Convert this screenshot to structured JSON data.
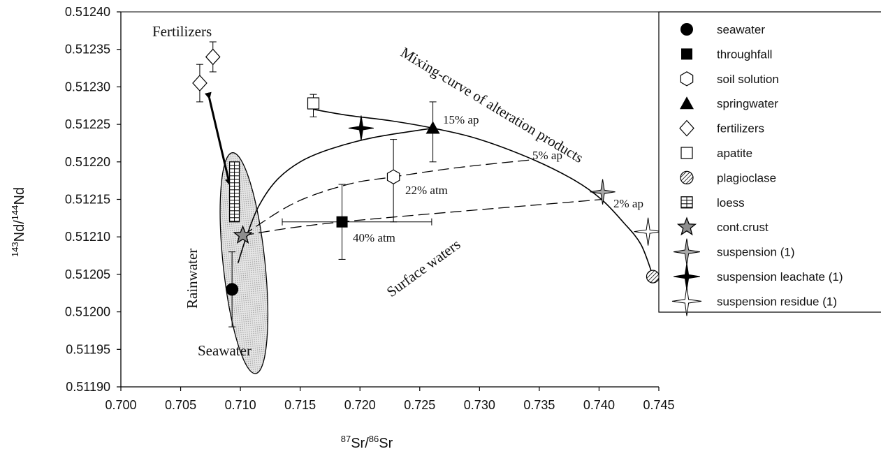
{
  "chart_data": {
    "type": "scatter",
    "xlabel": {
      "sup1": "87",
      "base1": "Sr/",
      "sup2": "86",
      "base2": "Sr"
    },
    "ylabel": {
      "sup1": "143",
      "base1": "Nd/",
      "sup2": "144",
      "base2": "Nd"
    },
    "xlim": [
      0.7,
      0.745
    ],
    "ylim": [
      0.5119,
      0.5124
    ],
    "xticks": [
      "0.700",
      "0.705",
      "0.710",
      "0.715",
      "0.720",
      "0.725",
      "0.730",
      "0.735",
      "0.740",
      "0.745"
    ],
    "yticks": [
      "0.51190",
      "0.51195",
      "0.51200",
      "0.51205",
      "0.51210",
      "0.51215",
      "0.51220",
      "0.51225",
      "0.51230",
      "0.51235",
      "0.51240"
    ],
    "grid": false,
    "legend_position": "right",
    "series": [
      {
        "name": "seawater",
        "marker": "circle",
        "points": [
          {
            "x": 0.7093,
            "y": 0.51203,
            "yerr": [
              0.51198,
              0.51208
            ]
          }
        ]
      },
      {
        "name": "throughfall",
        "marker": "square",
        "points": [
          {
            "x": 0.7185,
            "y": 0.51212,
            "xerr": [
              0.7135,
              0.726
            ],
            "yerr": [
              0.51207,
              0.51217
            ]
          }
        ]
      },
      {
        "name": "soil solution",
        "marker": "hexagon",
        "points": [
          {
            "x": 0.7228,
            "y": 0.51218,
            "yerr": [
              0.51212,
              0.51223
            ]
          }
        ]
      },
      {
        "name": "springwater",
        "marker": "triangle",
        "points": [
          {
            "x": 0.7261,
            "y": 0.512245,
            "yerr": [
              0.5122,
              0.51228
            ]
          }
        ]
      },
      {
        "name": "fertilizers",
        "marker": "diamond",
        "points": [
          {
            "x": 0.7066,
            "y": 0.512305,
            "yerr": [
              0.51228,
              0.51233
            ]
          },
          {
            "x": 0.7077,
            "y": 0.51234,
            "yerr": [
              0.51232,
              0.51236
            ]
          }
        ]
      },
      {
        "name": "apatite",
        "marker": "open-square",
        "points": [
          {
            "x": 0.7161,
            "y": 0.512278,
            "yerr": [
              0.51226,
              0.51229
            ]
          }
        ]
      },
      {
        "name": "plagioclase",
        "marker": "hatched-circle",
        "points": [
          {
            "x": 0.7445,
            "y": 0.512047
          }
        ]
      },
      {
        "name": "loess",
        "marker": "grid-rect",
        "points": [
          {
            "x": 0.7095,
            "y": 0.512125,
            "yerr": [
              0.51212,
              0.5122
            ]
          }
        ]
      },
      {
        "name": "cont.crust",
        "marker": "star",
        "points": [
          {
            "x": 0.7102,
            "y": 0.512102
          }
        ]
      },
      {
        "name": "suspension (1)",
        "marker": "gray-4star",
        "points": [
          {
            "x": 0.7403,
            "y": 0.51216
          }
        ]
      },
      {
        "name": "suspension leachate (1)",
        "marker": "black-4star",
        "points": [
          {
            "x": 0.7201,
            "y": 0.512245
          }
        ]
      },
      {
        "name": "suspension residue (1)",
        "marker": "open-4star",
        "points": [
          {
            "x": 0.7441,
            "y": 0.512107
          }
        ]
      }
    ],
    "curves": [
      {
        "name": "mixing-curve-alteration",
        "style": "solid",
        "points": [
          [
            0.7161,
            0.51227
          ],
          [
            0.719,
            0.512262
          ],
          [
            0.7225,
            0.512255
          ],
          [
            0.7261,
            0.512245
          ],
          [
            0.73,
            0.51223
          ],
          [
            0.7345,
            0.512203
          ],
          [
            0.738,
            0.512175
          ],
          [
            0.7402,
            0.51215
          ],
          [
            0.742,
            0.51212
          ],
          [
            0.7435,
            0.51209
          ],
          [
            0.7445,
            0.512048
          ]
        ]
      },
      {
        "name": "curve-to-springwater",
        "style": "solid",
        "points": [
          [
            0.7098,
            0.512065
          ],
          [
            0.7105,
            0.5121
          ],
          [
            0.7115,
            0.51214
          ],
          [
            0.713,
            0.512175
          ],
          [
            0.715,
            0.5122
          ],
          [
            0.7175,
            0.512217
          ],
          [
            0.721,
            0.512232
          ],
          [
            0.7261,
            0.512245
          ]
        ]
      },
      {
        "name": "dashed-5pct",
        "style": "dashed",
        "points": [
          [
            0.7102,
            0.512102
          ],
          [
            0.7145,
            0.512145
          ],
          [
            0.719,
            0.51217
          ],
          [
            0.7228,
            0.51218
          ],
          [
            0.728,
            0.512192
          ],
          [
            0.7345,
            0.512203
          ]
        ]
      },
      {
        "name": "dashed-2pct",
        "style": "dashed",
        "points": [
          [
            0.7102,
            0.512102
          ],
          [
            0.7185,
            0.51212
          ],
          [
            0.7403,
            0.51215
          ]
        ]
      }
    ],
    "arrow": {
      "from": [
        0.7074,
        0.512285
      ],
      "to": [
        0.7091,
        0.51217
      ]
    },
    "ellipse": {
      "cx": 0.7103,
      "cy": 0.512065,
      "rx": 0.00175,
      "ry": 0.000148
    },
    "annotations": {
      "fertilizers": "Fertilizers",
      "mixing": "Mixing-curve of alteration products",
      "p15": "15% ap",
      "p5": "5% ap",
      "p22": "22% atm",
      "p2": "2% ap",
      "p40": "40% atm",
      "surface": "Surface waters",
      "rainwater": "Rainwater",
      "seawater": "Seawater"
    },
    "colors": {
      "axis": "#000000",
      "shade": "#c8c8c8",
      "gray_marker": "#9a9a9a"
    }
  }
}
